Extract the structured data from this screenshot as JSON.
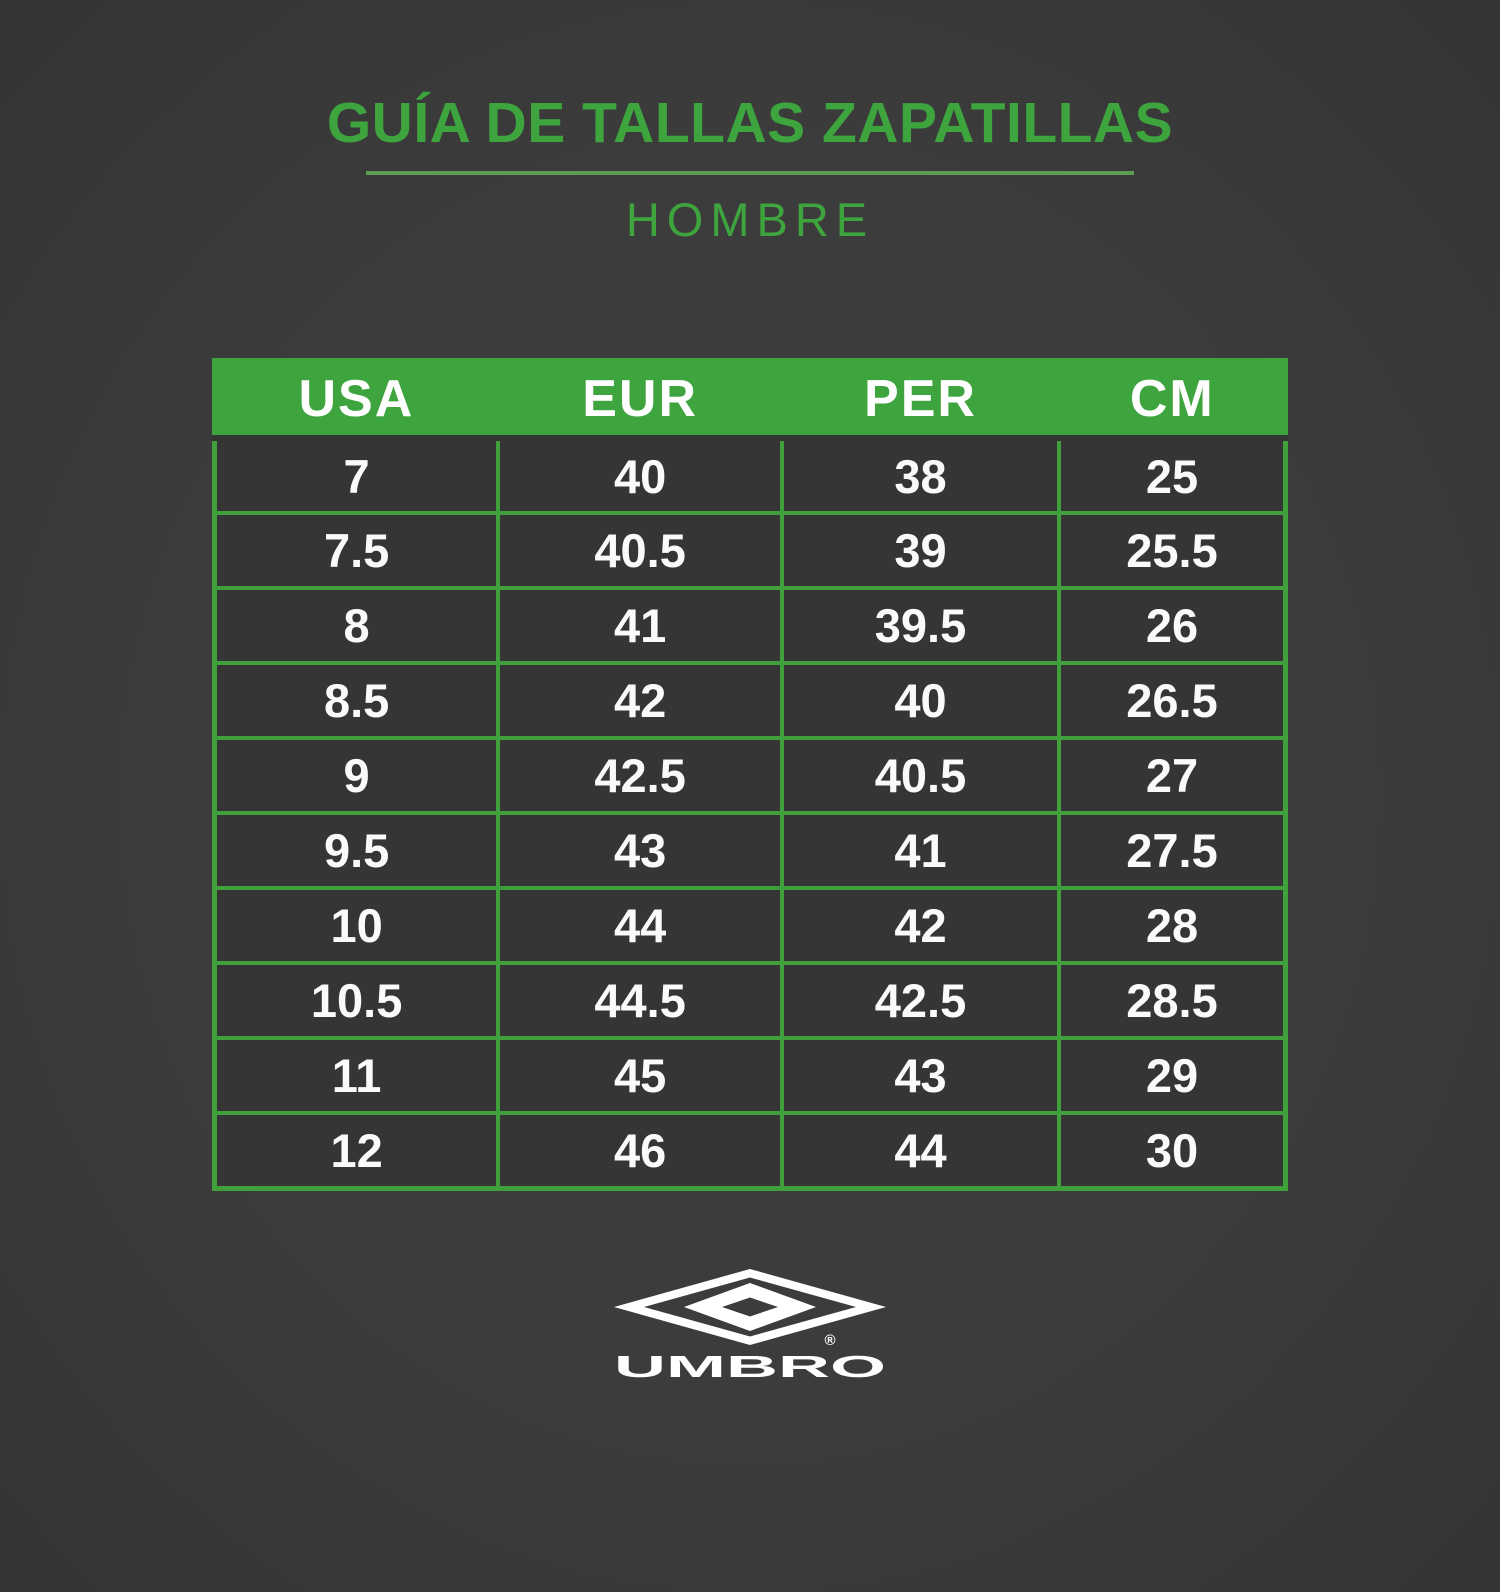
{
  "page": {
    "background_color": "#3A3A3A",
    "accent_green": "#3EA43E",
    "cell_background": "#353535",
    "text_white": "#FAFAFA"
  },
  "header": {
    "title": "GUÍA DE TALLAS ZAPATILLAS",
    "subtitle": "HOMBRE"
  },
  "table": {
    "columns": [
      "USA",
      "EUR",
      "PER",
      "CM"
    ],
    "rows": [
      [
        "7",
        "40",
        "38",
        "25"
      ],
      [
        "7.5",
        "40.5",
        "39",
        "25.5"
      ],
      [
        "8",
        "41",
        "39.5",
        "26"
      ],
      [
        "8.5",
        "42",
        "40",
        "26.5"
      ],
      [
        "9",
        "42.5",
        "40.5",
        "27"
      ],
      [
        "9.5",
        "43",
        "41",
        "27.5"
      ],
      [
        "10",
        "44",
        "42",
        "28"
      ],
      [
        "10.5",
        "44.5",
        "42.5",
        "28.5"
      ],
      [
        "11",
        "45",
        "43",
        "29"
      ],
      [
        "12",
        "46",
        "44",
        "30"
      ]
    ]
  },
  "footer": {
    "brand": "UMBRO",
    "registered_mark": "®",
    "logo_icon": "umbro-double-diamond-icon"
  },
  "chart_data": {
    "type": "table",
    "title": "GUÍA DE TALLAS ZAPATILLAS",
    "subtitle": "HOMBRE",
    "columns": [
      "USA",
      "EUR",
      "PER",
      "CM"
    ],
    "rows": [
      [
        7,
        40,
        38,
        25
      ],
      [
        7.5,
        40.5,
        39,
        25.5
      ],
      [
        8,
        41,
        39.5,
        26
      ],
      [
        8.5,
        42,
        40,
        26.5
      ],
      [
        9,
        42.5,
        40.5,
        27
      ],
      [
        9.5,
        43,
        41,
        27.5
      ],
      [
        10,
        44,
        42,
        28
      ],
      [
        10.5,
        44.5,
        42.5,
        28.5
      ],
      [
        11,
        45,
        43,
        29
      ],
      [
        12,
        46,
        44,
        30
      ]
    ],
    "layout": {
      "header_background": "#3EA43E",
      "grid_color": "#3FA03C",
      "grid": true,
      "legend_position": "none"
    }
  }
}
